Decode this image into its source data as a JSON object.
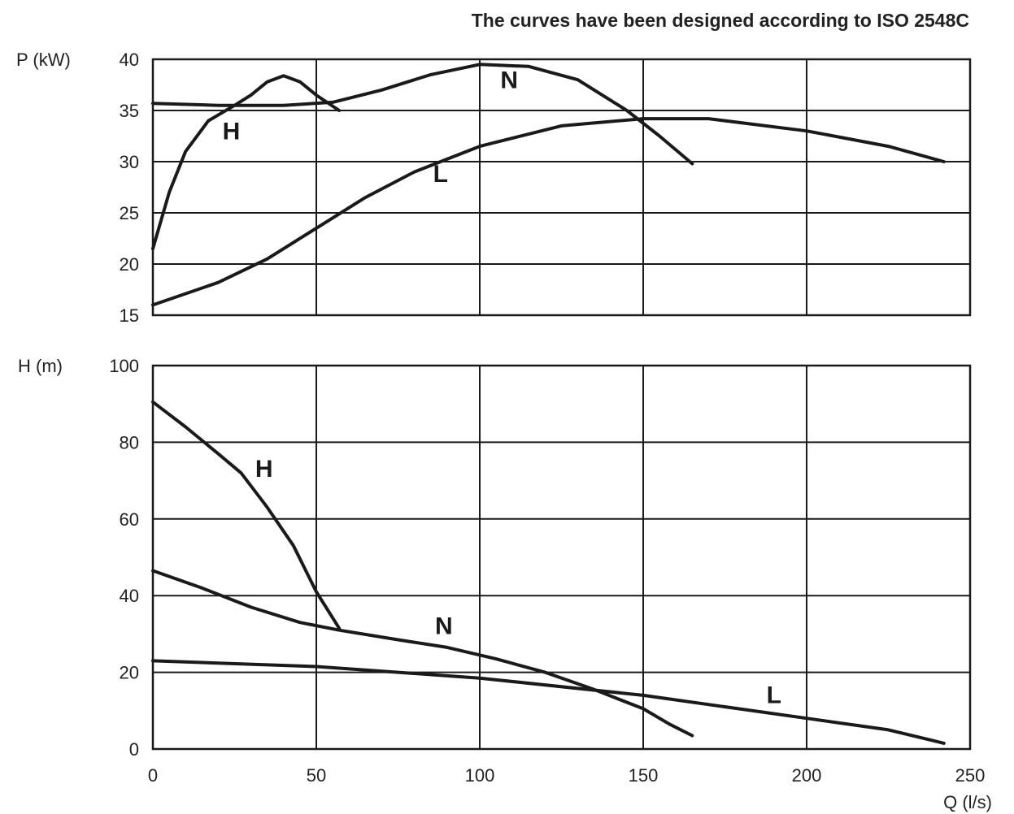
{
  "header": {
    "title": "The curves have been designed according to ISO 2548C"
  },
  "chart_data": [
    {
      "type": "line",
      "ylabel": "P (kW)",
      "xlim": [
        0,
        250
      ],
      "ylim": [
        15,
        40
      ],
      "xticks": [
        0,
        50,
        100,
        150,
        200,
        250
      ],
      "yticks": [
        15,
        20,
        25,
        30,
        35,
        40
      ],
      "series": [
        {
          "name": "H",
          "points": [
            [
              0,
              21.5
            ],
            [
              5,
              27
            ],
            [
              10,
              31
            ],
            [
              17,
              34
            ],
            [
              25,
              35.5
            ],
            [
              30,
              36.5
            ],
            [
              35,
              37.8
            ],
            [
              40,
              38.4
            ],
            [
              45,
              37.8
            ],
            [
              50,
              36.5
            ],
            [
              57,
              35
            ]
          ]
        },
        {
          "name": "N",
          "points": [
            [
              0,
              35.7
            ],
            [
              20,
              35.5
            ],
            [
              40,
              35.5
            ],
            [
              55,
              35.8
            ],
            [
              70,
              37
            ],
            [
              85,
              38.5
            ],
            [
              100,
              39.5
            ],
            [
              115,
              39.3
            ],
            [
              130,
              38
            ],
            [
              145,
              35
            ],
            [
              155,
              32.5
            ],
            [
              165,
              29.8
            ]
          ]
        },
        {
          "name": "L",
          "points": [
            [
              0,
              16
            ],
            [
              20,
              18.2
            ],
            [
              35,
              20.5
            ],
            [
              50,
              23.5
            ],
            [
              65,
              26.5
            ],
            [
              80,
              29
            ],
            [
              100,
              31.5
            ],
            [
              125,
              33.5
            ],
            [
              150,
              34.2
            ],
            [
              170,
              34.2
            ],
            [
              200,
              33
            ],
            [
              225,
              31.5
            ],
            [
              242,
              30
            ]
          ]
        }
      ],
      "curve_labels": [
        {
          "text": "H",
          "x": 24,
          "y": 32.2
        },
        {
          "text": "N",
          "x": 109,
          "y": 37.2
        },
        {
          "text": "L",
          "x": 88,
          "y": 28
        }
      ]
    },
    {
      "type": "line",
      "ylabel": "H (m)",
      "xlabel": "Q (l/s)",
      "xlim": [
        0,
        250
      ],
      "ylim": [
        0,
        100
      ],
      "xticks": [
        0,
        50,
        100,
        150,
        200,
        250
      ],
      "yticks": [
        0,
        20,
        40,
        60,
        80,
        100
      ],
      "series": [
        {
          "name": "H",
          "points": [
            [
              0,
              90.5
            ],
            [
              10,
              84
            ],
            [
              20,
              77
            ],
            [
              27,
              72
            ],
            [
              35,
              63
            ],
            [
              43,
              53
            ],
            [
              50,
              41
            ],
            [
              57,
              31.5
            ]
          ]
        },
        {
          "name": "N",
          "points": [
            [
              0,
              46.5
            ],
            [
              15,
              42
            ],
            [
              30,
              37
            ],
            [
              45,
              33
            ],
            [
              57,
              31
            ],
            [
              75,
              28.5
            ],
            [
              90,
              26.5
            ],
            [
              105,
              23.5
            ],
            [
              120,
              20
            ],
            [
              135,
              15.5
            ],
            [
              150,
              10.5
            ],
            [
              158,
              6.5
            ],
            [
              165,
              3.5
            ]
          ]
        },
        {
          "name": "L",
          "points": [
            [
              0,
              23
            ],
            [
              50,
              21.5
            ],
            [
              100,
              18.5
            ],
            [
              150,
              14
            ],
            [
              200,
              8
            ],
            [
              225,
              5
            ],
            [
              242,
              1.5
            ]
          ]
        }
      ],
      "curve_labels": [
        {
          "text": "H",
          "x": 34,
          "y": 71
        },
        {
          "text": "N",
          "x": 89,
          "y": 30
        },
        {
          "text": "L",
          "x": 190,
          "y": 12
        }
      ]
    }
  ],
  "x_tick_labels": [
    "0",
    "50",
    "100",
    "150",
    "200",
    "250"
  ]
}
